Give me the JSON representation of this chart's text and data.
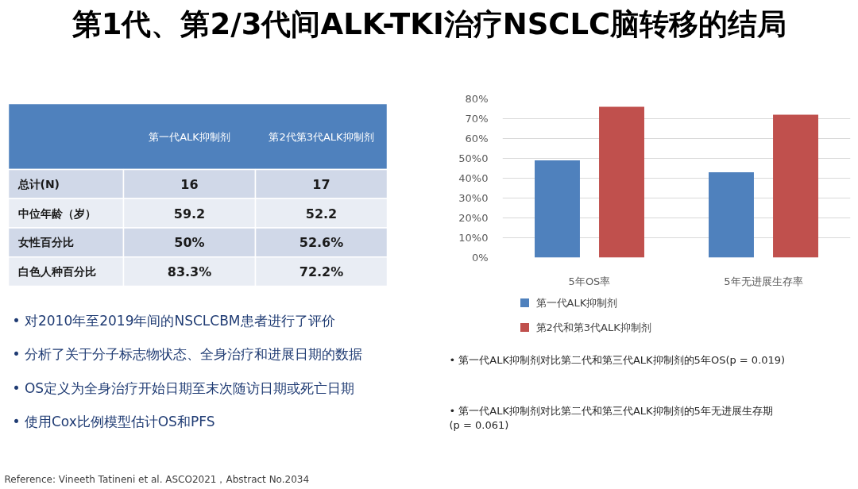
{
  "chart_data": [
    {
      "type": "other",
      "title": "第1代、第2/3代间ALK-TKI治疗NSCLC脑转移的结局",
      "categories": [
        "第一代ALK抑制剂",
        "第2代第3代ALK抑制剂"
      ],
      "y_categories": [
        "总计(N)",
        "中位年龄（岁）",
        "女性百分比",
        "白色人种百分比"
      ],
      "cell_labels": [
        [
          "16",
          "17"
        ],
        [
          "59.2",
          "52.2"
        ],
        [
          "50%",
          "52.6%"
        ],
        [
          "83.3%",
          "72.2%"
        ]
      ],
      "annotations": [
        "• 对2010年至2019年间的NSCLCBM患者进行了评价",
        "• 分析了关于分子标志物状态、全身治疗和进展日期的数据",
        "• OS定义为全身治疗开始日期至末次随访日期或死亡日期",
        "• 使用Cox比例模型估计OS和PFS",
        "Reference: Vineeth Tatineni et al. ASCO2021，Abstract No.2034"
      ]
    },
    {
      "type": "bar",
      "categories": [
        "5年OS率",
        "5年无进展生存率"
      ],
      "series": [
        {
          "name": "第一代ALK抑制剂",
          "color": "#4f81bd",
          "values": [
            49,
            43
          ]
        },
        {
          "name": "第2代和第3代ALK抑制剂",
          "color": "#c0504d",
          "values": [
            76,
            72
          ]
        }
      ],
      "ylim": [
        0,
        80
      ],
      "yticks": [
        {
          "value": 0,
          "label": "0%"
        },
        {
          "value": 10,
          "label": "10%0"
        },
        {
          "value": 20,
          "label": "20%0"
        },
        {
          "value": 30,
          "label": "30%0"
        },
        {
          "value": 40,
          "label": "40%0"
        },
        {
          "value": 50,
          "label": "50%0"
        },
        {
          "value": 60,
          "label": "60%"
        },
        {
          "value": 70,
          "label": "70%"
        },
        {
          "value": 80,
          "label": "80%"
        }
      ],
      "grid": "y",
      "legend": "bottom",
      "annotations": [
        "• 第一代ALK抑制剂对比第二代和第三代ALK抑制剂的5年OS(p = 0.019)",
        "• 第一代ALK抑制剂对比第二代和第三代ALK抑制剂的5年无进展生存期 (p = 0.061)"
      ]
    }
  ]
}
